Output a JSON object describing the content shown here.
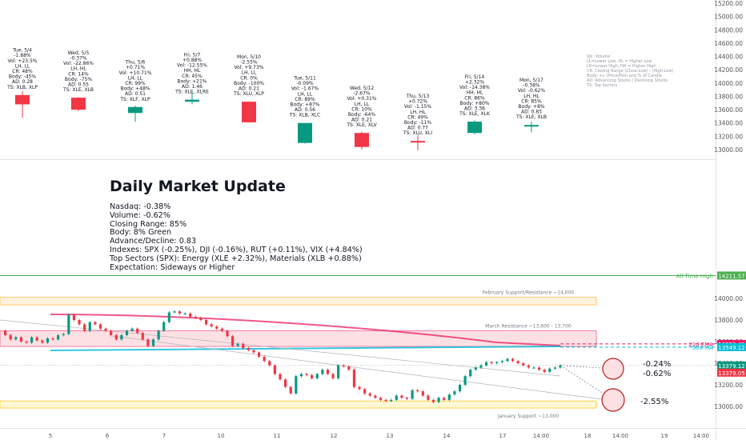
{
  "title": "Daily Market Update",
  "summary_lines": [
    "Nasdaq: -0.38%",
    "Volume: -0.62%",
    "Closing Range: 85%",
    "Body: 8% Green",
    "Advance/Decline: 0.83",
    "Indexes: SPX (-0.25%), DJI (-0.16%), RUT (+0.11%), VIX (+4.84%)",
    "Top Sectors (SPX): Energy (XLE +2.32%), Materials (XLB +0.88%)",
    "Expectation: Sideways or Higher"
  ],
  "legend_text": [
    "Vol: Volume",
    "LL=Lower Low, HL = Higher Low",
    "LH=Lower High, HH = Higher High",
    "CR: Closing Range (Close-Low) / (High-Low)",
    "Body: +/- (Price/Pos) and % of Candle",
    "AD: Advancing Stocks / Declining Stocks",
    "TS: Top Sectors"
  ],
  "colors": {
    "up": "#089981",
    "down": "#f23645",
    "ema": "#e91e63",
    "sma": "#00bcd4",
    "ath": "#4caf50",
    "support": "#ffb74d"
  },
  "chart_data": [
    {
      "type": "candlestick",
      "panel": "daily candles with stats",
      "y_axis_ticks": [
        13000,
        13200,
        13400,
        13600,
        13800,
        14000,
        14200,
        14400,
        14600,
        14800,
        15000,
        15200
      ],
      "ylim": [
        12880,
        15220
      ],
      "candles": [
        {
          "label": "Tue, 5/4",
          "stats": [
            "-1.88%",
            "Vol: +23.5%",
            "LH, LL",
            "CR: 48%",
            "Body: -45%",
            "AD: 0.28",
            "TS: XLB, XLP"
          ],
          "open": 13820,
          "high": 13880,
          "low": 13480,
          "close": 13680
        },
        {
          "label": "Wed, 5/5",
          "stats": [
            "-0.37%",
            "Vol: -22.86%",
            "LH, HL",
            "CR: 14%",
            "Body: -75%",
            "AD: 0.55",
            "TS: XLE, XLB"
          ],
          "open": 13780,
          "high": 13790,
          "low": 13575,
          "close": 13600
        },
        {
          "label": "Thu, 5/6",
          "stats": [
            "+0.71%",
            "Vol: +10.71%",
            "LH, LL",
            "CR: 99%",
            "Body: +48%",
            "AD: 0.51",
            "TS: XLF, XLP"
          ],
          "open": 13550,
          "high": 13660,
          "low": 13420,
          "close": 13640
        },
        {
          "label": "Fri, 5/7",
          "stats": [
            "+0.88%",
            "Vol: -12.55%",
            "HH, HL",
            "CR: 45%",
            "Body: +21%",
            "AD: 1.46",
            "TS: XLE, XLRE"
          ],
          "open": 13720,
          "high": 13860,
          "low": 13680,
          "close": 13750
        },
        {
          "label": "Mon, 5/10",
          "stats": [
            "-2.55%",
            "Vol: +9.73%",
            "LH, LL",
            "CR: 0%",
            "Body: -100%",
            "AD: 0.21",
            "TS: XLU, XLP"
          ],
          "open": 13720,
          "high": 13720,
          "low": 13410,
          "close": 13410
        },
        {
          "label": "Tue, 5/11",
          "stats": [
            "-0.09%",
            "Vol: -1.67%",
            "LH, LL",
            "CR: 89%",
            "Body: +87%",
            "AD: 0.56",
            "TS: XLB, XLC"
          ],
          "open": 13100,
          "high": 13400,
          "low": 13090,
          "close": 13400
        },
        {
          "label": "Wed, 5/12",
          "stats": [
            "-2.67%",
            "Vol: +0.31%",
            "LH, LL",
            "CR: 10%",
            "Body: -64%",
            "AD: 0.21",
            "TS: XLE, XLV"
          ],
          "open": 13250,
          "high": 13270,
          "low": 13000,
          "close": 13040
        },
        {
          "label": "Thu, 5/13",
          "stats": [
            "+0.72%",
            "Vol: -1.15%",
            "LH, HL",
            "CR: 49%",
            "Body: -11%",
            "AD: 0.77",
            "TS: XLU, XLI"
          ],
          "open": 13130,
          "high": 13220,
          "low": 12990,
          "close": 13115
        },
        {
          "label": "Fri, 5/14",
          "stats": [
            "+2.32%",
            "Vol: -14.38%",
            "HH, HL",
            "CR: 86%",
            "Body: +80%",
            "AD: 3.36",
            "TS: XLE, XLK"
          ],
          "open": 13250,
          "high": 13440,
          "low": 13230,
          "close": 13420
        },
        {
          "label": "Mon, 5/17",
          "stats": [
            "-0.38%",
            "Vol: -0.62%",
            "LH, HL",
            "CR: 85%",
            "Body: +8%",
            "AD: 0.83",
            "TS: XLE, XLB"
          ],
          "open": 13350,
          "high": 13420,
          "low": 13260,
          "close": 13370
        }
      ]
    },
    {
      "type": "line",
      "panel": "intraday price with levels",
      "y_axis_ticks": [
        13000,
        13200,
        13400,
        13600,
        13800,
        14000
      ],
      "ylim": [
        12820,
        14320
      ],
      "x_tick_labels": [
        "5",
        "6",
        "7",
        "10",
        "11",
        "12",
        "13",
        "14",
        "17",
        "14:00",
        "18",
        "14:00",
        "19",
        "14:00"
      ],
      "price_tags": [
        {
          "label": "All Time High",
          "value": "14211.57"
        },
        {
          "label": "21d EMA",
          "value": "13578.49"
        },
        {
          "label": "50d MA",
          "value": "13549.12"
        },
        {
          "label": "",
          "value": "13379.12"
        },
        {
          "label": "",
          "value": "13379.05"
        }
      ],
      "zones": [
        {
          "label": "February Support/Resistance ~14,000",
          "low": 13940,
          "high": 14010
        },
        {
          "label": "March Resistance ~13,600 - 13,700",
          "low": 13555,
          "high": 13700
        },
        {
          "label": "January Support ~13,000",
          "low": 12985,
          "high": 13050
        }
      ],
      "targets": [
        "-0.24%",
        "-0.62%",
        "-2.55%"
      ],
      "price_path": [
        13700,
        13660,
        13620,
        13640,
        13600,
        13590,
        13640,
        13610,
        13590,
        13630,
        13620,
        13660,
        13670,
        13850,
        13800,
        13760,
        13700,
        13780,
        13760,
        13720,
        13700,
        13660,
        13620,
        13660,
        13700,
        13720,
        13680,
        13620,
        13560,
        13620,
        13700,
        13780,
        13870,
        13880,
        13860,
        13860,
        13830,
        13820,
        13800,
        13760,
        13740,
        13720,
        13700,
        13650,
        13560,
        13580,
        13540,
        13520,
        13500,
        13460,
        13420,
        13380,
        13300,
        13250,
        13180,
        13120,
        13280,
        13300,
        13290,
        13260,
        13300,
        13340,
        13300,
        13260,
        13380,
        13370,
        13340,
        13180,
        13160,
        13120,
        13100,
        13080,
        13060,
        13050,
        13060,
        13100,
        13080,
        13070,
        13150,
        13140,
        13100,
        13060,
        13040,
        13080,
        13060,
        13110,
        13140,
        13200,
        13280,
        13340,
        13360,
        13380,
        13410,
        13400,
        13410,
        13420,
        13440,
        13420,
        13400,
        13380,
        13360,
        13360,
        13340,
        13320,
        13350,
        13360,
        13380
      ]
    }
  ]
}
